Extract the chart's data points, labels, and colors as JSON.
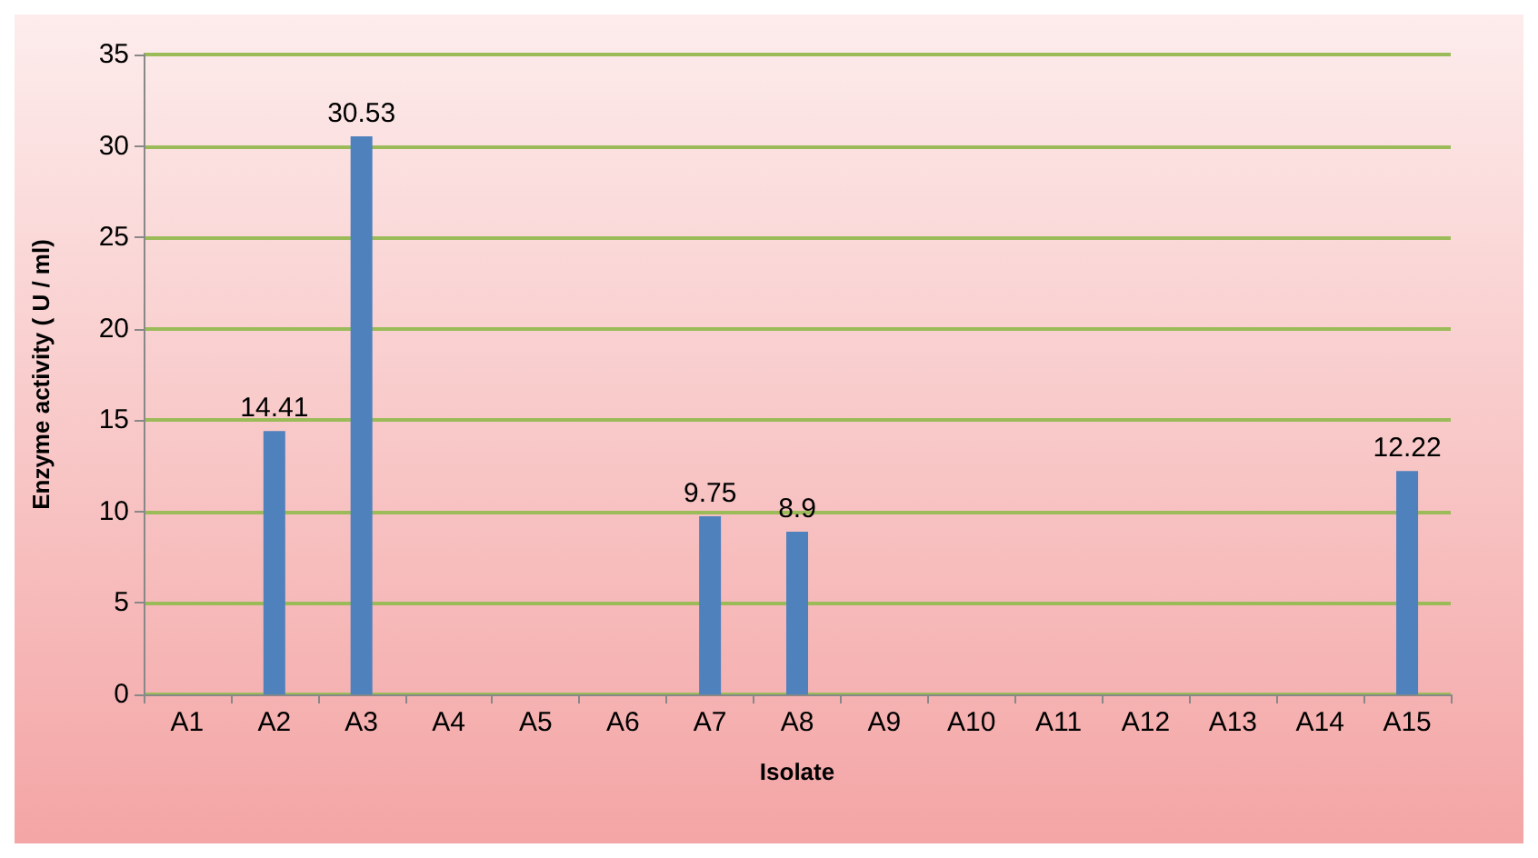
{
  "chart_data": {
    "type": "bar",
    "categories": [
      "A1",
      "A2",
      "A3",
      "A4",
      "A5",
      "A6",
      "A7",
      "A8",
      "A9",
      "A10",
      "A11",
      "A12",
      "A13",
      "A14",
      "A15"
    ],
    "values": [
      null,
      14.41,
      30.53,
      null,
      null,
      null,
      9.75,
      8.9,
      null,
      null,
      null,
      null,
      null,
      null,
      12.22
    ],
    "color": "#4f81bd",
    "xlabel": "Isolate",
    "ylabel": "Enzyme activity ( U / ml)",
    "ylim": [
      0,
      35
    ],
    "yticks": [
      0,
      5,
      10,
      15,
      20,
      25,
      30,
      35
    ],
    "grid": "y",
    "data_labels": true
  }
}
